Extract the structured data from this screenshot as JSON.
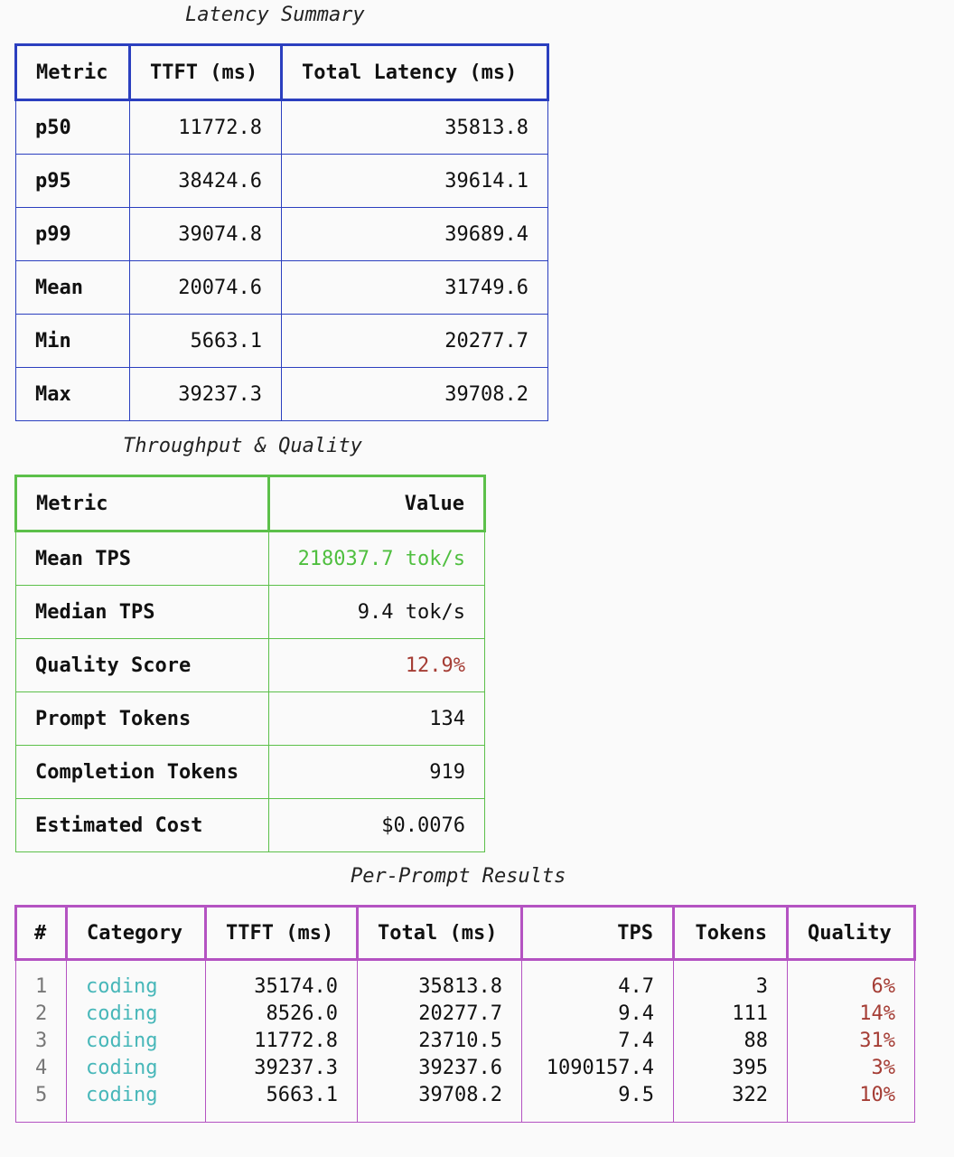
{
  "latency": {
    "caption": "Latency Summary",
    "headers": [
      "Metric",
      "TTFT (ms)",
      "Total Latency (ms)"
    ],
    "rows": [
      {
        "metric": "p50",
        "ttft": "11772.8",
        "total": "35813.8"
      },
      {
        "metric": "p95",
        "ttft": "38424.6",
        "total": "39614.1"
      },
      {
        "metric": "p99",
        "ttft": "39074.8",
        "total": "39689.4"
      },
      {
        "metric": "Mean",
        "ttft": "20074.6",
        "total": "31749.6"
      },
      {
        "metric": "Min",
        "ttft": "5663.1",
        "total": "20277.7"
      },
      {
        "metric": "Max",
        "ttft": "39237.3",
        "total": "39708.2"
      }
    ]
  },
  "throughput": {
    "caption": "Throughput & Quality",
    "headers": [
      "Metric",
      "Value"
    ],
    "rows": [
      {
        "metric": "Mean TPS",
        "value": "218037.7 tok/s"
      },
      {
        "metric": "Median TPS",
        "value": "9.4 tok/s"
      },
      {
        "metric": "Quality Score",
        "value": "12.9%"
      },
      {
        "metric": "Prompt Tokens",
        "value": "134"
      },
      {
        "metric": "Completion Tokens",
        "value": "919"
      },
      {
        "metric": "Estimated Cost",
        "value": "$0.0076"
      }
    ]
  },
  "per_prompt": {
    "caption": "Per-Prompt Results",
    "headers": [
      "#",
      "Category",
      "TTFT (ms)",
      "Total (ms)",
      "TPS",
      "Tokens",
      "Quality"
    ],
    "rows": [
      {
        "idx": "1",
        "category": "coding",
        "ttft": "35174.0",
        "total": "35813.8",
        "tps": "4.7",
        "tokens": "3",
        "quality": "6%"
      },
      {
        "idx": "2",
        "category": "coding",
        "ttft": "8526.0",
        "total": "20277.7",
        "tps": "9.4",
        "tokens": "111",
        "quality": "14%"
      },
      {
        "idx": "3",
        "category": "coding",
        "ttft": "11772.8",
        "total": "23710.5",
        "tps": "7.4",
        "tokens": "88",
        "quality": "31%"
      },
      {
        "idx": "4",
        "category": "coding",
        "ttft": "39237.3",
        "total": "39237.6",
        "tps": "1090157.4",
        "tokens": "395",
        "quality": "3%"
      },
      {
        "idx": "5",
        "category": "coding",
        "ttft": "5663.1",
        "total": "39708.2",
        "tps": "9.5",
        "tokens": "322",
        "quality": "10%"
      }
    ]
  },
  "colors": {
    "latency_border": "#2b3fbf",
    "throughput_border": "#5cc04a",
    "prompt_border": "#b453c2",
    "tps_highlight": "#4fbf3f",
    "quality_text": "#a53d35",
    "category_text": "#47b7b9"
  }
}
